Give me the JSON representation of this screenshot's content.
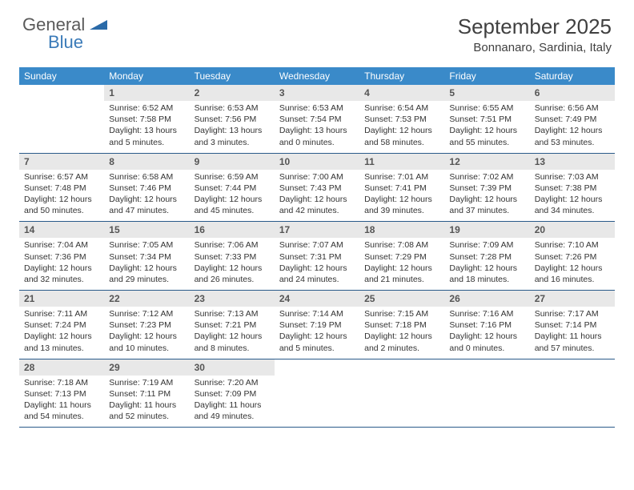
{
  "logo": {
    "text1": "General",
    "text2": "Blue"
  },
  "title": "September 2025",
  "location": "Bonnanaro, Sardinia, Italy",
  "colors": {
    "header_bg": "#3a8ac9",
    "header_text": "#ffffff",
    "daynum_bg": "#e8e8e8",
    "daynum_text": "#555555",
    "body_text": "#333333",
    "rule": "#2a5a8a",
    "logo_dark": "#5a5a5a",
    "logo_blue": "#3a7ab8"
  },
  "weekdays": [
    "Sunday",
    "Monday",
    "Tuesday",
    "Wednesday",
    "Thursday",
    "Friday",
    "Saturday"
  ],
  "weeks": [
    [
      {
        "n": "",
        "sr": "",
        "ss": "",
        "dl": ""
      },
      {
        "n": "1",
        "sr": "Sunrise: 6:52 AM",
        "ss": "Sunset: 7:58 PM",
        "dl": "Daylight: 13 hours and 5 minutes."
      },
      {
        "n": "2",
        "sr": "Sunrise: 6:53 AM",
        "ss": "Sunset: 7:56 PM",
        "dl": "Daylight: 13 hours and 3 minutes."
      },
      {
        "n": "3",
        "sr": "Sunrise: 6:53 AM",
        "ss": "Sunset: 7:54 PM",
        "dl": "Daylight: 13 hours and 0 minutes."
      },
      {
        "n": "4",
        "sr": "Sunrise: 6:54 AM",
        "ss": "Sunset: 7:53 PM",
        "dl": "Daylight: 12 hours and 58 minutes."
      },
      {
        "n": "5",
        "sr": "Sunrise: 6:55 AM",
        "ss": "Sunset: 7:51 PM",
        "dl": "Daylight: 12 hours and 55 minutes."
      },
      {
        "n": "6",
        "sr": "Sunrise: 6:56 AM",
        "ss": "Sunset: 7:49 PM",
        "dl": "Daylight: 12 hours and 53 minutes."
      }
    ],
    [
      {
        "n": "7",
        "sr": "Sunrise: 6:57 AM",
        "ss": "Sunset: 7:48 PM",
        "dl": "Daylight: 12 hours and 50 minutes."
      },
      {
        "n": "8",
        "sr": "Sunrise: 6:58 AM",
        "ss": "Sunset: 7:46 PM",
        "dl": "Daylight: 12 hours and 47 minutes."
      },
      {
        "n": "9",
        "sr": "Sunrise: 6:59 AM",
        "ss": "Sunset: 7:44 PM",
        "dl": "Daylight: 12 hours and 45 minutes."
      },
      {
        "n": "10",
        "sr": "Sunrise: 7:00 AM",
        "ss": "Sunset: 7:43 PM",
        "dl": "Daylight: 12 hours and 42 minutes."
      },
      {
        "n": "11",
        "sr": "Sunrise: 7:01 AM",
        "ss": "Sunset: 7:41 PM",
        "dl": "Daylight: 12 hours and 39 minutes."
      },
      {
        "n": "12",
        "sr": "Sunrise: 7:02 AM",
        "ss": "Sunset: 7:39 PM",
        "dl": "Daylight: 12 hours and 37 minutes."
      },
      {
        "n": "13",
        "sr": "Sunrise: 7:03 AM",
        "ss": "Sunset: 7:38 PM",
        "dl": "Daylight: 12 hours and 34 minutes."
      }
    ],
    [
      {
        "n": "14",
        "sr": "Sunrise: 7:04 AM",
        "ss": "Sunset: 7:36 PM",
        "dl": "Daylight: 12 hours and 32 minutes."
      },
      {
        "n": "15",
        "sr": "Sunrise: 7:05 AM",
        "ss": "Sunset: 7:34 PM",
        "dl": "Daylight: 12 hours and 29 minutes."
      },
      {
        "n": "16",
        "sr": "Sunrise: 7:06 AM",
        "ss": "Sunset: 7:33 PM",
        "dl": "Daylight: 12 hours and 26 minutes."
      },
      {
        "n": "17",
        "sr": "Sunrise: 7:07 AM",
        "ss": "Sunset: 7:31 PM",
        "dl": "Daylight: 12 hours and 24 minutes."
      },
      {
        "n": "18",
        "sr": "Sunrise: 7:08 AM",
        "ss": "Sunset: 7:29 PM",
        "dl": "Daylight: 12 hours and 21 minutes."
      },
      {
        "n": "19",
        "sr": "Sunrise: 7:09 AM",
        "ss": "Sunset: 7:28 PM",
        "dl": "Daylight: 12 hours and 18 minutes."
      },
      {
        "n": "20",
        "sr": "Sunrise: 7:10 AM",
        "ss": "Sunset: 7:26 PM",
        "dl": "Daylight: 12 hours and 16 minutes."
      }
    ],
    [
      {
        "n": "21",
        "sr": "Sunrise: 7:11 AM",
        "ss": "Sunset: 7:24 PM",
        "dl": "Daylight: 12 hours and 13 minutes."
      },
      {
        "n": "22",
        "sr": "Sunrise: 7:12 AM",
        "ss": "Sunset: 7:23 PM",
        "dl": "Daylight: 12 hours and 10 minutes."
      },
      {
        "n": "23",
        "sr": "Sunrise: 7:13 AM",
        "ss": "Sunset: 7:21 PM",
        "dl": "Daylight: 12 hours and 8 minutes."
      },
      {
        "n": "24",
        "sr": "Sunrise: 7:14 AM",
        "ss": "Sunset: 7:19 PM",
        "dl": "Daylight: 12 hours and 5 minutes."
      },
      {
        "n": "25",
        "sr": "Sunrise: 7:15 AM",
        "ss": "Sunset: 7:18 PM",
        "dl": "Daylight: 12 hours and 2 minutes."
      },
      {
        "n": "26",
        "sr": "Sunrise: 7:16 AM",
        "ss": "Sunset: 7:16 PM",
        "dl": "Daylight: 12 hours and 0 minutes."
      },
      {
        "n": "27",
        "sr": "Sunrise: 7:17 AM",
        "ss": "Sunset: 7:14 PM",
        "dl": "Daylight: 11 hours and 57 minutes."
      }
    ],
    [
      {
        "n": "28",
        "sr": "Sunrise: 7:18 AM",
        "ss": "Sunset: 7:13 PM",
        "dl": "Daylight: 11 hours and 54 minutes."
      },
      {
        "n": "29",
        "sr": "Sunrise: 7:19 AM",
        "ss": "Sunset: 7:11 PM",
        "dl": "Daylight: 11 hours and 52 minutes."
      },
      {
        "n": "30",
        "sr": "Sunrise: 7:20 AM",
        "ss": "Sunset: 7:09 PM",
        "dl": "Daylight: 11 hours and 49 minutes."
      },
      {
        "n": "",
        "sr": "",
        "ss": "",
        "dl": ""
      },
      {
        "n": "",
        "sr": "",
        "ss": "",
        "dl": ""
      },
      {
        "n": "",
        "sr": "",
        "ss": "",
        "dl": ""
      },
      {
        "n": "",
        "sr": "",
        "ss": "",
        "dl": ""
      }
    ]
  ]
}
